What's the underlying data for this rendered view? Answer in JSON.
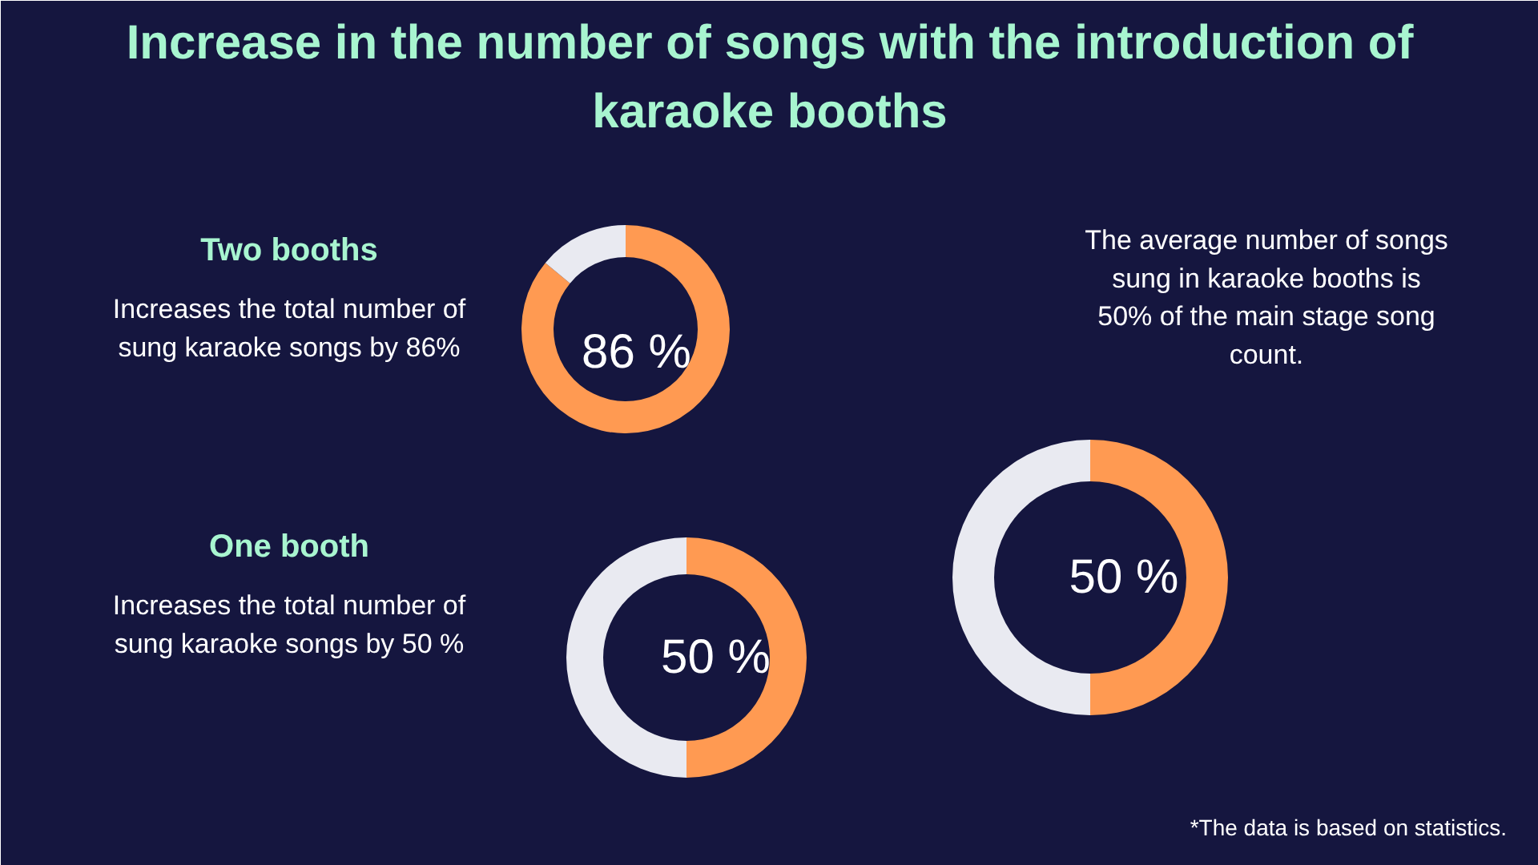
{
  "chart_data": [
    {
      "type": "other",
      "title": "Increase in the number of songs with the introduction of karaoke booths",
      "annotations": [
        "*The data is based on statistics."
      ]
    },
    {
      "type": "donut",
      "title": "Two booths",
      "subtitle": "Increases the total number of sung karaoke songs by 86%",
      "categories": [
        null,
        null
      ],
      "values": [
        86,
        14
      ],
      "colors": [
        "#ff9a52",
        "#e9eaf1"
      ],
      "value_labels": [
        "86 %",
        null
      ]
    },
    {
      "type": "donut",
      "title": "One booth",
      "subtitle": "Increases the total number of sung karaoke songs by 50 %",
      "categories": [
        null,
        null
      ],
      "values": [
        50,
        50
      ],
      "colors": [
        "#ff9a52",
        "#e9eaf1"
      ],
      "value_labels": [
        "50 %",
        null
      ]
    },
    {
      "type": "donut",
      "annotations": [
        "The average number of songs sung in karaoke booths is 50% of the main stage song count."
      ],
      "categories": [
        null,
        null
      ],
      "values": [
        50,
        50
      ],
      "colors": [
        "#ff9a52",
        "#e9eaf1"
      ],
      "value_labels": [
        "50 %",
        null
      ]
    }
  ]
}
